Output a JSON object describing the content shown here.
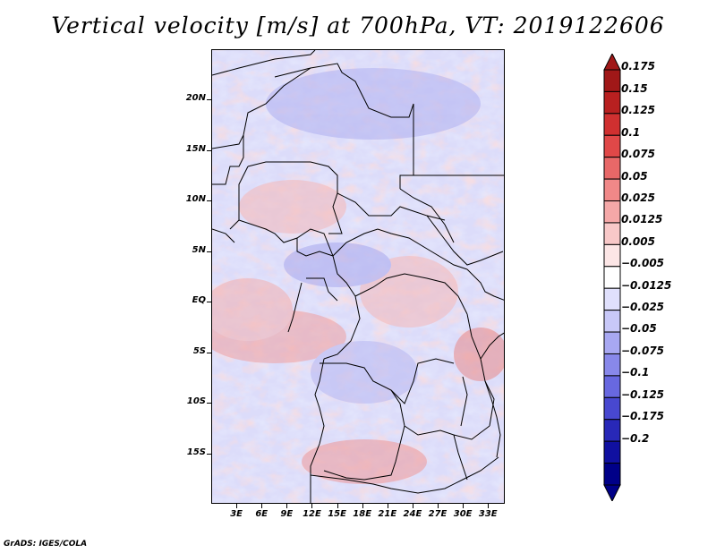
{
  "title": "Vertical velocity [m/s] at 700hPa, VT: 2019122606",
  "footer": "GrADS: IGES/COLA",
  "map": {
    "lon_range": [
      0,
      35
    ],
    "lat_range": [
      -20,
      25
    ]
  },
  "lat_labels": [
    {
      "value": 20,
      "text": "20N"
    },
    {
      "value": 15,
      "text": "15N"
    },
    {
      "value": 10,
      "text": "10N"
    },
    {
      "value": 5,
      "text": "5N"
    },
    {
      "value": 0,
      "text": "EQ"
    },
    {
      "value": -5,
      "text": "5S"
    },
    {
      "value": -10,
      "text": "10S"
    },
    {
      "value": -15,
      "text": "15S"
    }
  ],
  "lon_labels": [
    {
      "value": 3,
      "text": "3E"
    },
    {
      "value": 6,
      "text": "6E"
    },
    {
      "value": 9,
      "text": "9E"
    },
    {
      "value": 12,
      "text": "12E"
    },
    {
      "value": 15,
      "text": "15E"
    },
    {
      "value": 18,
      "text": "18E"
    },
    {
      "value": 21,
      "text": "21E"
    },
    {
      "value": 24,
      "text": "24E"
    },
    {
      "value": 27,
      "text": "27E"
    },
    {
      "value": 30,
      "text": "30E"
    },
    {
      "value": 33,
      "text": "33E"
    }
  ],
  "colorbar": {
    "labels": [
      "0.175",
      "0.15",
      "0.125",
      "0.1",
      "0.075",
      "0.05",
      "0.025",
      "0.0125",
      "0.005",
      "−0.005",
      "−0.0125",
      "−0.025",
      "−0.05",
      "−0.075",
      "−0.1",
      "−0.125",
      "−0.175",
      "−0.2"
    ],
    "colors": [
      "#a01818",
      "#b82020",
      "#d03030",
      "#e04848",
      "#e86868",
      "#f08888",
      "#f5a8a8",
      "#f8c8c8",
      "#fce6e6",
      "#ffffff",
      "#e0e0fc",
      "#c8c8f8",
      "#a8a8f2",
      "#8888ea",
      "#6868e0",
      "#4848d0",
      "#2828b8",
      "#1010a0",
      "#000088"
    ]
  },
  "palette": {
    "background_neutral": "#ffffff",
    "positive_light": "#f6b8b8",
    "negative_light": "#c0c0f6",
    "border_color": "#000000"
  }
}
